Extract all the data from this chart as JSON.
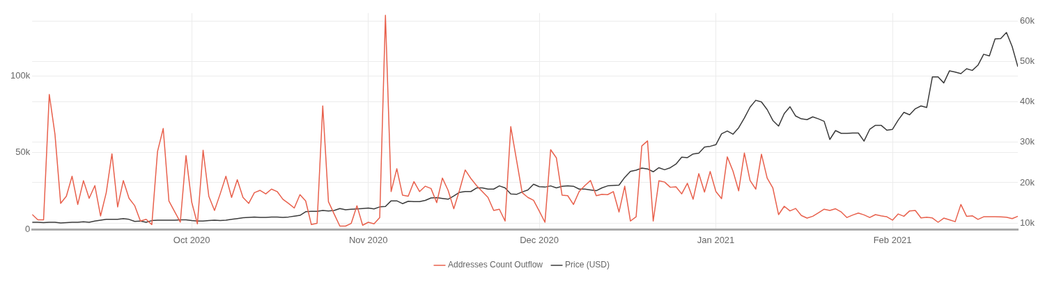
{
  "chart_data": {
    "type": "line",
    "x": [
      "2020-09-03",
      "2020-09-04",
      "2020-09-05",
      "2020-09-06",
      "2020-09-07",
      "2020-09-08",
      "2020-09-09",
      "2020-09-10",
      "2020-09-11",
      "2020-09-12",
      "2020-09-13",
      "2020-09-14",
      "2020-09-15",
      "2020-09-16",
      "2020-09-17",
      "2020-09-18",
      "2020-09-19",
      "2020-09-20",
      "2020-09-21",
      "2020-09-22",
      "2020-09-23",
      "2020-09-24",
      "2020-09-25",
      "2020-09-26",
      "2020-09-27",
      "2020-09-28",
      "2020-09-29",
      "2020-09-30",
      "2020-10-01",
      "2020-10-02",
      "2020-10-03",
      "2020-10-04",
      "2020-10-05",
      "2020-10-06",
      "2020-10-07",
      "2020-10-08",
      "2020-10-09",
      "2020-10-10",
      "2020-10-11",
      "2020-10-12",
      "2020-10-13",
      "2020-10-14",
      "2020-10-15",
      "2020-10-16",
      "2020-10-17",
      "2020-10-18",
      "2020-10-19",
      "2020-10-20",
      "2020-10-21",
      "2020-10-22",
      "2020-10-23",
      "2020-10-24",
      "2020-10-25",
      "2020-10-26",
      "2020-10-27",
      "2020-10-28",
      "2020-10-29",
      "2020-10-30",
      "2020-10-31",
      "2020-11-01",
      "2020-11-02",
      "2020-11-03",
      "2020-11-04",
      "2020-11-05",
      "2020-11-06",
      "2020-11-07",
      "2020-11-08",
      "2020-11-09",
      "2020-11-10",
      "2020-11-11",
      "2020-11-12",
      "2020-11-13",
      "2020-11-14",
      "2020-11-15",
      "2020-11-16",
      "2020-11-17",
      "2020-11-18",
      "2020-11-19",
      "2020-11-20",
      "2020-11-21",
      "2020-11-22",
      "2020-11-23",
      "2020-11-24",
      "2020-11-25",
      "2020-11-26",
      "2020-11-27",
      "2020-11-28",
      "2020-11-29",
      "2020-11-30",
      "2020-12-01",
      "2020-12-02",
      "2020-12-03",
      "2020-12-04",
      "2020-12-05",
      "2020-12-06",
      "2020-12-07",
      "2020-12-08",
      "2020-12-09",
      "2020-12-10",
      "2020-12-11",
      "2020-12-12",
      "2020-12-13",
      "2020-12-14",
      "2020-12-15",
      "2020-12-16",
      "2020-12-17",
      "2020-12-18",
      "2020-12-19",
      "2020-12-20",
      "2020-12-21",
      "2020-12-22",
      "2020-12-23",
      "2020-12-24",
      "2020-12-25",
      "2020-12-26",
      "2020-12-27",
      "2020-12-28",
      "2020-12-29",
      "2020-12-30",
      "2020-12-31",
      "2021-01-01",
      "2021-01-02",
      "2021-01-03",
      "2021-01-04",
      "2021-01-05",
      "2021-01-06",
      "2021-01-07",
      "2021-01-08",
      "2021-01-09",
      "2021-01-10",
      "2021-01-11",
      "2021-01-12",
      "2021-01-13",
      "2021-01-14",
      "2021-01-15",
      "2021-01-16",
      "2021-01-17",
      "2021-01-18",
      "2021-01-19",
      "2021-01-20",
      "2021-01-21",
      "2021-01-22",
      "2021-01-23",
      "2021-01-24",
      "2021-01-25",
      "2021-01-26",
      "2021-01-27",
      "2021-01-28",
      "2021-01-29",
      "2021-01-30",
      "2021-01-31",
      "2021-02-01",
      "2021-02-02",
      "2021-02-03",
      "2021-02-04",
      "2021-02-05",
      "2021-02-06",
      "2021-02-07",
      "2021-02-08",
      "2021-02-09",
      "2021-02-10",
      "2021-02-11",
      "2021-02-12",
      "2021-02-13",
      "2021-02-14",
      "2021-02-15",
      "2021-02-16",
      "2021-02-17",
      "2021-02-18",
      "2021-02-19",
      "2021-02-20",
      "2021-02-21",
      "2021-02-22",
      "2021-02-23"
    ],
    "series": [
      {
        "name": "Addresses Count Outflow",
        "color": "#e8604c",
        "values": [
          9800,
          6300,
          6300,
          88000,
          62000,
          17000,
          21700,
          34700,
          16300,
          31800,
          20300,
          28600,
          8800,
          24000,
          49300,
          14700,
          31900,
          20300,
          15500,
          5500,
          6600,
          3200,
          50800,
          65800,
          18600,
          11700,
          4800,
          48200,
          17800,
          3700,
          51600,
          21700,
          12400,
          23200,
          34700,
          20900,
          32400,
          20900,
          17000,
          24000,
          25500,
          23200,
          26300,
          24700,
          19700,
          17000,
          14000,
          22700,
          18600,
          3200,
          4000,
          80500,
          18100,
          10100,
          2200,
          2200,
          4000,
          15500,
          2800,
          4700,
          3700,
          7800,
          139500,
          24700,
          39600,
          22400,
          21700,
          31200,
          24700,
          28200,
          26700,
          17500,
          33500,
          25500,
          13500,
          25500,
          38800,
          33200,
          28600,
          24700,
          20900,
          12400,
          13200,
          5500,
          67000,
          45500,
          24000,
          20900,
          19000,
          12000,
          4700,
          52000,
          46700,
          22400,
          22000,
          16300,
          24700,
          28600,
          31900,
          22000,
          22900,
          22700,
          24700,
          11400,
          28200,
          5500,
          8300,
          54400,
          57700,
          5500,
          31700,
          30900,
          27500,
          27800,
          23200,
          30100,
          19700,
          36400,
          24400,
          37800,
          24700,
          20100,
          47300,
          38100,
          25200,
          49800,
          31900,
          26300,
          49000,
          33500,
          27000,
          9700,
          15100,
          12100,
          13700,
          9100,
          7400,
          8600,
          10900,
          13200,
          12400,
          13500,
          11400,
          7800,
          9400,
          10700,
          9500,
          7800,
          9700,
          8900,
          8300,
          6100,
          10100,
          8600,
          12100,
          12400,
          7500,
          8000,
          7500,
          4700,
          7400,
          6300,
          5100,
          16300,
          8600,
          8900,
          6600,
          8300,
          8300,
          8300,
          8200,
          8000,
          7100,
          8600
        ]
      },
      {
        "name": "Price (USD)",
        "color": "#3a3a3a",
        "axis": "y2",
        "values": [
          10200,
          10200,
          10100,
          10200,
          10200,
          10000,
          10100,
          10200,
          10200,
          10300,
          10200,
          10500,
          10700,
          10900,
          10900,
          10900,
          11100,
          10900,
          10400,
          10500,
          10200,
          10600,
          10700,
          10700,
          10700,
          10700,
          10800,
          10800,
          10600,
          10500,
          10500,
          10600,
          10700,
          10600,
          10700,
          10900,
          11100,
          11300,
          11400,
          11500,
          11400,
          11400,
          11500,
          11500,
          11400,
          11500,
          11700,
          11900,
          12800,
          12900,
          12900,
          13100,
          13000,
          13100,
          13600,
          13300,
          13400,
          13500,
          13600,
          13700,
          13500,
          14000,
          14100,
          15500,
          15500,
          14800,
          15400,
          15300,
          15300,
          15600,
          16200,
          16300,
          16100,
          15900,
          16700,
          17600,
          17800,
          17800,
          18700,
          18700,
          18400,
          18400,
          19200,
          18700,
          17200,
          17100,
          17700,
          18200,
          19600,
          19000,
          18900,
          19200,
          18700,
          19100,
          19200,
          19100,
          18400,
          18400,
          18200,
          18000,
          18700,
          19200,
          19300,
          19400,
          21300,
          22800,
          23100,
          23600,
          23400,
          22700,
          23700,
          23200,
          23700,
          24600,
          26300,
          26200,
          27100,
          27300,
          28800,
          29000,
          29400,
          32100,
          32800,
          32000,
          33600,
          36000,
          38700,
          40400,
          40000,
          38100,
          35400,
          34000,
          37100,
          38800,
          36500,
          35800,
          35600,
          36300,
          35800,
          35200,
          30700,
          32900,
          32200,
          32200,
          32300,
          32300,
          30300,
          33200,
          34200,
          34200,
          33000,
          33200,
          35500,
          37400,
          36800,
          38300,
          39000,
          38600,
          46200,
          46200,
          44700,
          47700,
          47400,
          47000,
          48200,
          47800,
          49100,
          51800,
          51400,
          55600,
          55700,
          57200,
          53700,
          48700
        ]
      }
    ],
    "xlim": [
      "2020-09-03",
      "2021-02-23"
    ],
    "xticks": [
      {
        "value": "2020-10-01",
        "label": "Oct 2020"
      },
      {
        "value": "2020-11-01",
        "label": "Nov 2020"
      },
      {
        "value": "2020-12-01",
        "label": "Dec 2020"
      },
      {
        "value": "2021-01-01",
        "label": "Jan 2021"
      },
      {
        "value": "2021-02-01",
        "label": "Feb 2021"
      }
    ],
    "ylim": [
      0,
      141000
    ],
    "yticks": [
      0,
      {
        "value": 50000,
        "label": "50k"
      },
      {
        "value": 100000,
        "label": "100k"
      }
    ],
    "y2lim": [
      8400,
      62000
    ],
    "y2ticks": [
      {
        "value": 10000,
        "label": "10k"
      },
      {
        "value": 20000,
        "label": "20k"
      },
      {
        "value": 30000,
        "label": "30k"
      },
      {
        "value": 40000,
        "label": "40k"
      },
      {
        "value": 50000,
        "label": "50k"
      },
      {
        "value": 60000,
        "label": "60k"
      }
    ],
    "grid": true,
    "legend": "bottom"
  }
}
